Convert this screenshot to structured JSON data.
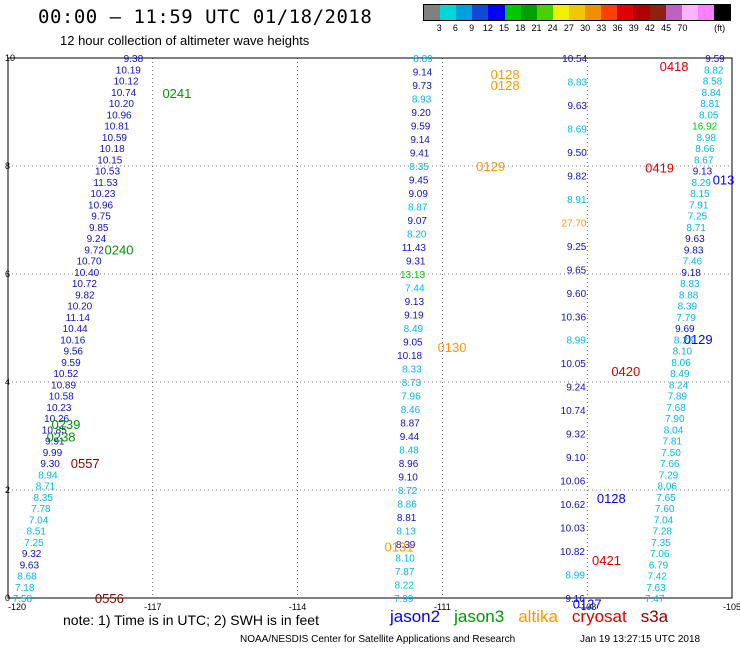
{
  "header": {
    "title": "00:00 – 11:59 UTC 01/18/2018",
    "subtitle": "12 hour collection of altimeter wave heights"
  },
  "scale": {
    "colors": [
      "#808080",
      "#00d8d8",
      "#00a0e0",
      "#1048d8",
      "#0000ff",
      "#00c800",
      "#00a000",
      "#48d000",
      "#f0f000",
      "#f0c800",
      "#f09000",
      "#ff4000",
      "#e00000",
      "#b00000",
      "#902010",
      "#c060c0",
      "#ffb4ff",
      "#ff80ff",
      "#000000"
    ],
    "labels": [
      "3",
      "6",
      "9",
      "12",
      "15",
      "18",
      "21",
      "24",
      "27",
      "30",
      "33",
      "36",
      "39",
      "42",
      "45",
      "70",
      "(ft)"
    ]
  },
  "footer": {
    "note": "note:  1) Time is in UTC;  2) SWH is in feet",
    "credit": "NOAA/NESDIS Center for Satellite Applications and Research",
    "timestamp": "Jan 19 13:27:15 UTC 2018"
  },
  "legend": [
    {
      "name": "jason2",
      "color": "#0000ff"
    },
    {
      "name": "jason3",
      "color": "#009600"
    },
    {
      "name": "altika",
      "color": "#ff9600"
    },
    {
      "name": "cryosat",
      "color": "#e00000"
    },
    {
      "name": "s3a",
      "color": "#8b0000"
    }
  ],
  "chart_data": {
    "type": "scatter",
    "xlim": [
      -120,
      -105
    ],
    "ylim": [
      0,
      10
    ],
    "x_ticks": [
      "-120",
      "-117",
      "-114",
      "-111",
      "-108",
      "-105"
    ],
    "y_ticks": [
      "0",
      "2",
      "4",
      "6",
      "8",
      "10"
    ],
    "colors": {
      "c3": "#00b8e8",
      "c6": "#00a0e0",
      "c9": "#1010c8",
      "c12": "#0000ff",
      "c15": "#00c800",
      "c18": "#00a000"
    },
    "tracks": [
      {
        "satellite": "jason2",
        "t0": 0.47,
        "t1": 0.12,
        "x0": 0.5,
        "x1": 2.8,
        "values": [
          "9.38",
          "10.19",
          "10.12",
          "10.74",
          "10.20",
          "10.96",
          "10.81",
          "10.59",
          "10.18",
          "10.15",
          "10.53",
          "11.53",
          "10.23",
          "10.96",
          "9.75",
          "9.85",
          "9.24",
          "9.72",
          "10.70",
          "10.40",
          "10.72",
          "9.82",
          "10.20",
          "11.14",
          "10.44",
          "10.16",
          "9.56",
          "9.59",
          "10.52",
          "10.89",
          "10.58",
          "10.23",
          "10.26",
          "10.85",
          "9.91",
          "9.99",
          "9.30",
          "8.94",
          "8.71",
          "8.35",
          "7.78",
          "7.04",
          "8.51",
          "7.25",
          "9.32",
          "9.63",
          "8.68",
          "7.18",
          "7.58"
        ],
        "colors": [
          "c9",
          "c9",
          "c9",
          "c9",
          "c9",
          "c9",
          "c9",
          "c9",
          "c9",
          "c9",
          "c9",
          "c9",
          "c9",
          "c9",
          "c9",
          "c9",
          "c9",
          "c9",
          "c9",
          "c9",
          "c9",
          "c9",
          "c9",
          "c9",
          "c9",
          "c9",
          "c9",
          "c9",
          "c9",
          "c9",
          "c9",
          "c9",
          "c9",
          "c9",
          "c9",
          "c9",
          "c9",
          "c3",
          "c3",
          "c3",
          "c3",
          "c3",
          "c3",
          "c3",
          "c9",
          "c9",
          "c3",
          "c3",
          "c3"
        ]
      },
      {
        "satellite": "altika",
        "t0": 0.0,
        "t1": 0.0,
        "x0": 8.4,
        "x1": 8.8,
        "values": [
          "8.89",
          "9.14",
          "9.73",
          "8.93",
          "9.20",
          "9.59",
          "9.14",
          "9.41",
          "8.35",
          "9.45",
          "9.09",
          "8.87",
          "9.07",
          "8.20",
          "11.43",
          "9.31",
          "13.13",
          "7.44",
          "9.13",
          "9.19",
          "8.49",
          "9.05",
          "10.18",
          "8.33",
          "8.73",
          "7.96",
          "8.46",
          "8.87",
          "9.44",
          "8.48",
          "8.96",
          "9.10",
          "8.72",
          "8.86",
          "8.81",
          "8.13",
          "8.39",
          "8.10",
          "7.87",
          "8.22",
          "7.99"
        ],
        "colors": [
          "c3",
          "c9",
          "c9",
          "c3",
          "c9",
          "c9",
          "c9",
          "c9",
          "c3",
          "c9",
          "c9",
          "c3",
          "c9",
          "c3",
          "c9",
          "c9",
          "c15",
          "c3",
          "c9",
          "c9",
          "c3",
          "c9",
          "c9",
          "c3",
          "c3",
          "c3",
          "c3",
          "c9",
          "c9",
          "c3",
          "c9",
          "c9",
          "c3",
          "c3",
          "c9",
          "c3",
          "c9",
          "c3",
          "c3",
          "c3",
          "c3"
        ]
      },
      {
        "satellite": "cryosat",
        "t0": 0.0,
        "t1": 0.0,
        "x0": 11.95,
        "x1": 12.0,
        "values": [
          "10.54",
          "8.83",
          "9.63",
          "8.69",
          "9.50",
          "9.82",
          "8.91",
          "27.70",
          "9.25",
          "9.65",
          "9.60",
          "10.36",
          "8.99",
          "10.05",
          "9.24",
          "10.74",
          "9.32",
          "9.10",
          "10.06",
          "10.62",
          "10.03",
          "10.82",
          "8.99",
          "9.16"
        ],
        "colors": [
          "c9",
          "c3",
          "c9",
          "c3",
          "c9",
          "c9",
          "c3",
          "altika",
          "c9",
          "c9",
          "c9",
          "c9",
          "c3",
          "c9",
          "c9",
          "c9",
          "c9",
          "c9",
          "c9",
          "c9",
          "c9",
          "c9",
          "c3",
          "c9"
        ]
      },
      {
        "satellite": "jason3",
        "t0": 0.0,
        "t1": 0.0,
        "x0": 13.6,
        "x1": 14.85,
        "values": [
          "9.59",
          "8.82",
          "8.58",
          "8.84",
          "8.81",
          "8.05",
          "16.92",
          "8.98",
          "8.66",
          "8.67",
          "9.13",
          "8.29",
          "8.15",
          "7.91",
          "7.25",
          "8.71",
          "9.63",
          "9.83",
          "7.46",
          "9.18",
          "8.83",
          "8.88",
          "8.39",
          "7.79",
          "9.69",
          "8.23",
          "8.10",
          "8.06",
          "8.49",
          "8.24",
          "7.89",
          "7.68",
          "7.90",
          "8.04",
          "7.81",
          "7.50",
          "7.66",
          "7.29",
          "8.06",
          "7.65",
          "7.60",
          "7.04",
          "7.28",
          "7.35",
          "7.06",
          "6.79",
          "7.42",
          "7.63",
          "7.47"
        ],
        "colors": [
          "c9",
          "c3",
          "c3",
          "c3",
          "c3",
          "c3",
          "c15",
          "c3",
          "c3",
          "c3",
          "c9",
          "c3",
          "c3",
          "c3",
          "c3",
          "c3",
          "c9",
          "c9",
          "c3",
          "c9",
          "c3",
          "c3",
          "c3",
          "c3",
          "c9",
          "c3",
          "c3",
          "c3",
          "c3",
          "c3",
          "c3",
          "c3",
          "c3",
          "c3",
          "c3",
          "c3",
          "c3",
          "c3",
          "c3",
          "c3",
          "c3",
          "c3",
          "c3",
          "c3",
          "c3",
          "c3",
          "c3",
          "c3",
          "c3"
        ]
      }
    ],
    "annotations": [
      {
        "text": "0241",
        "x": -116.8,
        "y": 9.35,
        "color": "#009600"
      },
      {
        "text": "0240",
        "x": -118.0,
        "y": 6.45,
        "color": "#009600"
      },
      {
        "text": "0239",
        "x": -119.1,
        "y": 3.22,
        "color": "#009600"
      },
      {
        "text": "0238",
        "x": -119.2,
        "y": 2.99,
        "color": "#009600"
      },
      {
        "text": "0557",
        "x": -118.7,
        "y": 2.5,
        "color": "#8b0000"
      },
      {
        "text": "0556",
        "x": -118.2,
        "y": 0.0,
        "color": "#8b0000"
      },
      {
        "text": "0128",
        "x": -110.0,
        "y": 9.7,
        "color": "#ff9600"
      },
      {
        "text": "0128",
        "x": -110.0,
        "y": 9.5,
        "color": "#ff9600"
      },
      {
        "text": "0129",
        "x": -110.3,
        "y": 8.0,
        "color": "#ff9600"
      },
      {
        "text": "0130",
        "x": -111.1,
        "y": 4.65,
        "color": "#ff9600"
      },
      {
        "text": "0131",
        "x": -112.2,
        "y": 0.95,
        "color": "#ff9600"
      },
      {
        "text": "0418",
        "x": -106.5,
        "y": 9.85,
        "color": "#e00000"
      },
      {
        "text": "0419",
        "x": -106.8,
        "y": 7.97,
        "color": "#e00000"
      },
      {
        "text": "0420",
        "x": -107.5,
        "y": 4.2,
        "color": "#e00000"
      },
      {
        "text": "0421",
        "x": -107.9,
        "y": 0.7,
        "color": "#e00000"
      },
      {
        "text": "0129",
        "x": -106.0,
        "y": 4.8,
        "color": "#0000ff"
      },
      {
        "text": "0128",
        "x": -107.8,
        "y": 1.85,
        "color": "#0000ff"
      },
      {
        "text": "0127",
        "x": -108.3,
        "y": -0.1,
        "color": "#0000ff"
      },
      {
        "text": "013",
        "x": -105.4,
        "y": 7.75,
        "color": "#0000ff"
      }
    ]
  }
}
